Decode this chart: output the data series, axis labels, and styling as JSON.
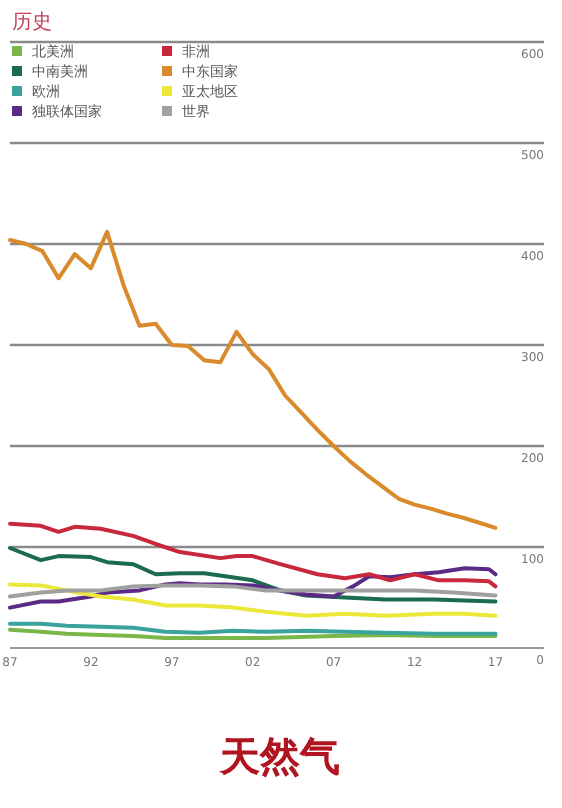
{
  "chart_data": {
    "type": "line",
    "title": "历史",
    "annotations": [
      "天然气"
    ],
    "xlim": [
      1987,
      2020
    ],
    "ylim": [
      0,
      600
    ],
    "xticks": [
      {
        "value": 1987,
        "label": "87"
      },
      {
        "value": 1992,
        "label": "92"
      },
      {
        "value": 1997,
        "label": "97"
      },
      {
        "value": 2002,
        "label": "02"
      },
      {
        "value": 2007,
        "label": "07"
      },
      {
        "value": 2012,
        "label": "12"
      },
      {
        "value": 2017,
        "label": "17"
      }
    ],
    "yticks": [
      0,
      100,
      200,
      300,
      400,
      500,
      600
    ],
    "grid": "y",
    "legend": "top left",
    "series": [
      {
        "name": "北美洲",
        "color": "#7ab648",
        "x": [
          1987,
          1988.9,
          1990.5,
          1992.6,
          1994.6,
          1996.6,
          1998.7,
          2002.8,
          2007,
          2010.2,
          2013.2,
          2017
        ],
        "values": [
          18,
          16,
          14,
          13,
          12,
          10,
          10,
          10,
          12,
          13,
          12,
          12
        ]
      },
      {
        "name": "中南美洲",
        "color": "#1a6b4f",
        "x": [
          1987,
          1988.9,
          1990,
          1992,
          1993,
          1994.6,
          1996,
          1997.5,
          1999,
          2000.3,
          2002,
          2003.7,
          2005.3,
          2007.7,
          2010.2,
          2013.2,
          2017
        ],
        "values": [
          99,
          87,
          91,
          90,
          85,
          83,
          73,
          74,
          74,
          71,
          67,
          57,
          52,
          50,
          48,
          48,
          46
        ]
      },
      {
        "name": "欧洲",
        "color": "#3aa39b",
        "x": [
          1987,
          1988.9,
          1990.5,
          1992.6,
          1994.6,
          1996.6,
          1998.7,
          2000.8,
          2002.8,
          2005.3,
          2007.7,
          2010.2,
          2013.2,
          2015.1,
          2017
        ],
        "values": [
          24,
          24,
          22,
          21,
          20,
          16,
          15,
          17,
          16,
          17,
          16,
          15,
          14,
          14,
          14
        ]
      },
      {
        "name": "独联体国家",
        "color": "#5b2a86",
        "x": [
          1987,
          1988.9,
          1990,
          1992,
          1993,
          1995,
          1996.6,
          1997.5,
          1998.7,
          2000.3,
          2002,
          2003.7,
          2005.3,
          2007,
          2008.2,
          2009.2,
          2010.5,
          2012,
          2013.5,
          2015.1,
          2016.6,
          2017
        ],
        "values": [
          40,
          46,
          46,
          51,
          55,
          57,
          63,
          64,
          63,
          63,
          62,
          57,
          53,
          51,
          61,
          71,
          70,
          73,
          75,
          79,
          78,
          73
        ]
      },
      {
        "name": "非洲",
        "color": "#c8283c",
        "x": [
          1987,
          1988.9,
          1990,
          1991,
          1992.6,
          1994.6,
          1996,
          1997.5,
          2000,
          2001,
          2002,
          2003.7,
          2006,
          2007.7,
          2009.2,
          2010.5,
          2012,
          2013.5,
          2015.1,
          2016.6,
          2017
        ],
        "values": [
          123,
          121,
          115,
          120,
          118,
          111,
          103,
          95,
          89,
          91,
          91,
          83,
          73,
          69,
          73,
          67,
          73,
          67,
          67,
          66,
          61
        ]
      },
      {
        "name": "中东国家",
        "color": "#d98a2b",
        "x": [
          1987,
          1988,
          1989,
          1990,
          1991,
          1992,
          1993,
          1994,
          1995,
          1996,
          1997,
          1998,
          1999,
          2000,
          2001,
          2002,
          2003,
          2004,
          2005,
          2006,
          2007,
          2008,
          2009,
          2010,
          2011,
          2012,
          2013,
          2014,
          2015,
          2016,
          2017
        ],
        "values": [
          404,
          400,
          393,
          366,
          390,
          376,
          412,
          360,
          319,
          321,
          300,
          299,
          285,
          283,
          313,
          291,
          276,
          250,
          233,
          216,
          200,
          185,
          172,
          160,
          148,
          142,
          138,
          133,
          129,
          124,
          119
        ]
      },
      {
        "name": "亚太地区",
        "color": "#ece83a",
        "x": [
          1987,
          1988.9,
          1990.5,
          1992.6,
          1994.6,
          1996.6,
          1998.7,
          2000.8,
          2002.8,
          2005.3,
          2007.7,
          2010.2,
          2013.2,
          2015.1,
          2017
        ],
        "values": [
          63,
          62,
          57,
          51,
          48,
          42,
          42,
          40,
          36,
          32,
          34,
          32,
          34,
          34,
          32
        ]
      },
      {
        "name": "世界",
        "color": "#a0a0a0",
        "x": [
          1987,
          1988.9,
          1990.5,
          1992.6,
          1994.6,
          1996.6,
          1998.7,
          2000.8,
          2002.8,
          2005.3,
          2007.7,
          2009.5,
          2012,
          2014.4,
          2017
        ],
        "values": [
          51,
          55,
          57,
          57,
          61,
          62,
          62,
          61,
          57,
          57,
          57,
          57,
          57,
          55,
          52
        ]
      }
    ]
  }
}
